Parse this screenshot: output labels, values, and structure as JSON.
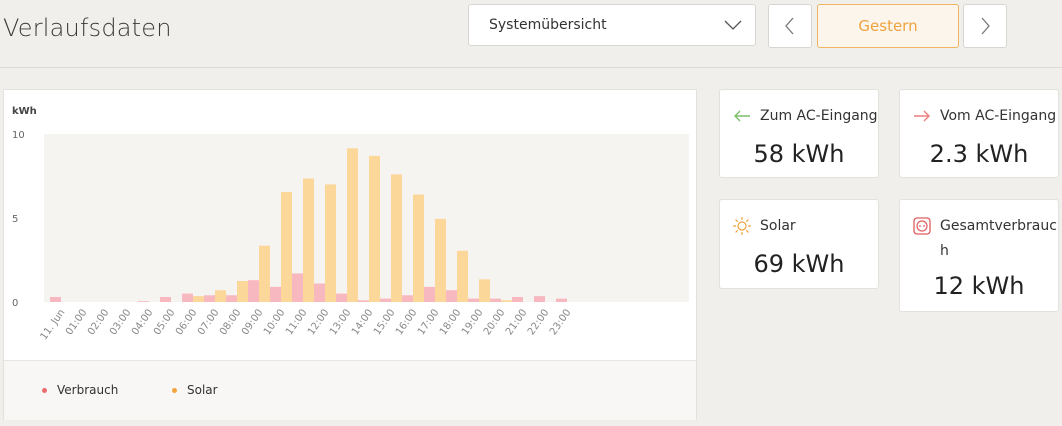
{
  "header": {
    "title": "Verlaufsdaten",
    "view_select": "Systemübersicht",
    "date_label": "Gestern"
  },
  "colors": {
    "accent": "#f2a33a",
    "consumption": "#f8b8bf",
    "solar": "#fbd79a"
  },
  "stats": {
    "ac_in": {
      "label": "Zum AC-Eingang",
      "value": "58 kWh",
      "icon": "arrow-left-icon"
    },
    "ac_out": {
      "label": "Vom AC-Eingang",
      "value": "2.3 kWh",
      "icon": "arrow-right-icon"
    },
    "solar": {
      "label": "Solar",
      "value": "69 kWh",
      "icon": "sun-icon"
    },
    "total": {
      "label_line1": "Gesamtverbrauc",
      "label_line2": "h",
      "value": "12 kWh",
      "icon": "socket-icon"
    }
  },
  "legend": {
    "consumption": "Verbrauch",
    "solar": "Solar"
  },
  "chart_data": {
    "type": "bar",
    "ylabel": "kWh",
    "ylim": [
      0,
      10
    ],
    "yticks": [
      "0",
      "5",
      "10"
    ],
    "categories": [
      "11. Jun",
      "01:00",
      "02:00",
      "03:00",
      "04:00",
      "05:00",
      "06:00",
      "07:00",
      "08:00",
      "09:00",
      "10:00",
      "11:00",
      "12:00",
      "13:00",
      "14:00",
      "15:00",
      "16:00",
      "17:00",
      "18:00",
      "19:00",
      "20:00",
      "21:00",
      "22:00",
      "23:00"
    ],
    "series": [
      {
        "name": "Verbrauch",
        "values": [
          0.3,
          0,
          0,
          0,
          0.05,
          0.3,
          0.5,
          0.4,
          0.4,
          1.3,
          0.9,
          1.7,
          1.1,
          0.5,
          0.1,
          0.2,
          0.4,
          0.9,
          0.7,
          0.2,
          0.2,
          0.3,
          0.35,
          0.2
        ]
      },
      {
        "name": "Solar",
        "values": [
          0,
          0,
          0,
          0,
          0,
          0,
          0.35,
          0.7,
          1.25,
          3.35,
          6.55,
          7.35,
          7.0,
          9.15,
          8.7,
          7.6,
          6.4,
          4.95,
          3.05,
          1.35,
          0.1,
          0,
          0,
          0
        ]
      }
    ]
  }
}
